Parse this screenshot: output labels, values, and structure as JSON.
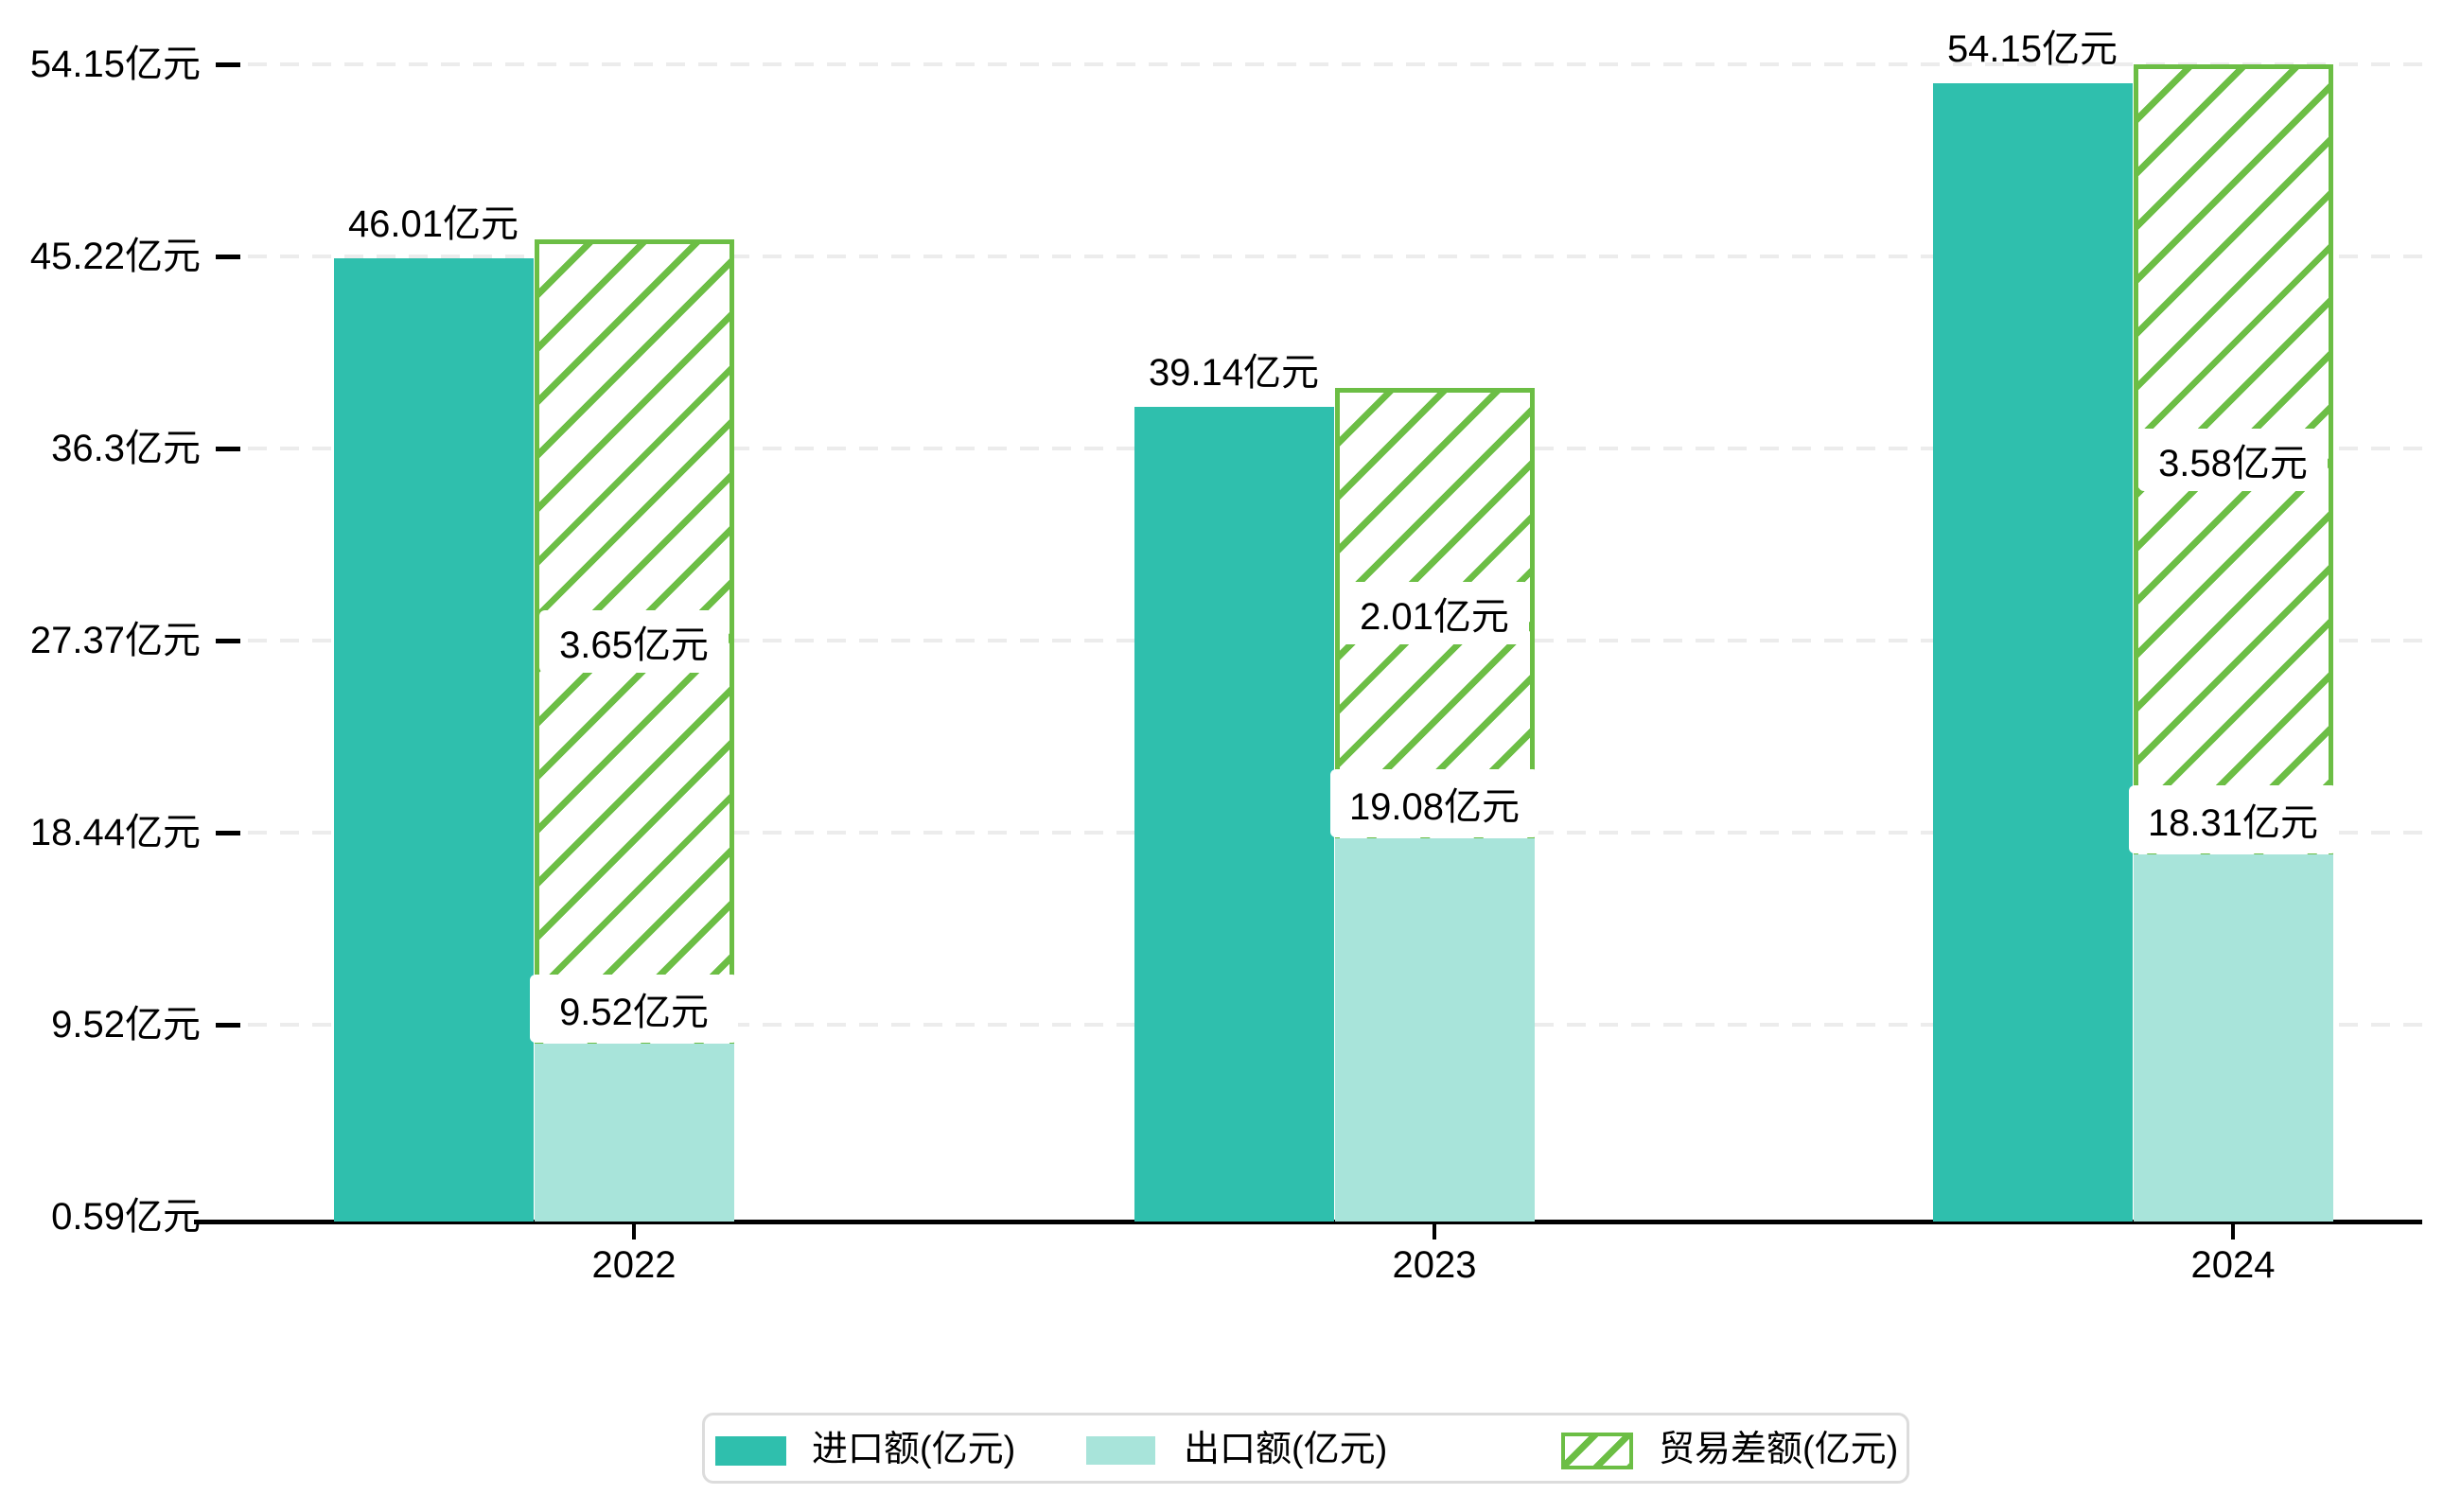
{
  "chart_data": {
    "type": "bar",
    "title": "",
    "categories": [
      "2022",
      "2023",
      "2024"
    ],
    "series": [
      {
        "name": "进口额(亿元)",
        "style": "solid",
        "color": "#2fbfad",
        "values": [
          46.01,
          39.14,
          54.15
        ],
        "data_labels": [
          "46.01亿元",
          "39.14亿元",
          "54.15亿元"
        ]
      },
      {
        "name": "出口额(亿元)",
        "style": "solid",
        "color": "#a8e4da",
        "values": [
          9.52,
          19.08,
          18.31
        ],
        "data_labels": [
          "9.52亿元",
          "19.08亿元",
          "18.31亿元"
        ]
      },
      {
        "name": "贸易差额(亿元)",
        "style": "hatched",
        "color": "#6cbe45",
        "values": [
          3.65,
          2.01,
          3.58
        ],
        "data_labels": [
          "3.65亿元",
          "2.01亿元",
          "3.58亿元"
        ]
      }
    ],
    "y_axis": {
      "tick_values": [
        0.59,
        9.52,
        18.44,
        27.37,
        36.3,
        45.22,
        54.15
      ],
      "tick_labels": [
        "0.59亿元",
        "9.52亿元",
        "18.44亿元",
        "27.37亿元",
        "36.3亿元",
        "45.22亿元",
        "54.15亿元"
      ]
    },
    "x_axis": {
      "tick_labels": [
        "2022",
        "2023",
        "2024"
      ]
    },
    "grid": "horizontal-dashed",
    "legend_position": "bottom",
    "colors": {
      "import": "#2fbfad",
      "export": "#a8e4da",
      "difference": "#6cbe45",
      "gridline": "#ececec",
      "axis": "#000000",
      "legend_border": "#dcdcdc",
      "background": "#ffffff"
    }
  }
}
